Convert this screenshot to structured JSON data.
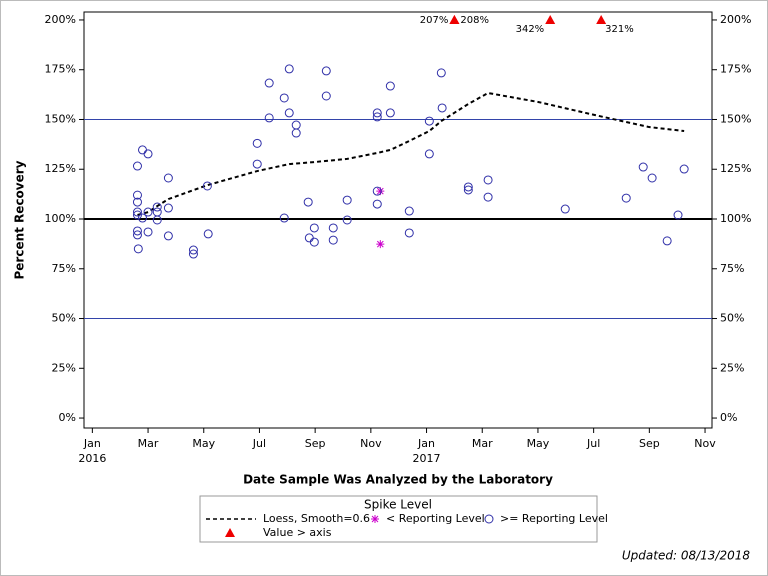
{
  "chart_data": {
    "type": "scatter",
    "x_label": "Date Sample Was Analyzed by the Laboratory",
    "y_label": "Percent Recovery",
    "xlim": [
      -0.3,
      22.25
    ],
    "xticks": [
      {
        "value": 0,
        "label": "Jan"
      },
      {
        "value": 2,
        "label": "Mar"
      },
      {
        "value": 4,
        "label": "May"
      },
      {
        "value": 6,
        "label": "Jul"
      },
      {
        "value": 8,
        "label": "Sep"
      },
      {
        "value": 10,
        "label": "Nov"
      },
      {
        "value": 12,
        "label": "Jan"
      },
      {
        "value": 14,
        "label": "Mar"
      },
      {
        "value": 16,
        "label": "May"
      },
      {
        "value": 18,
        "label": "Jul"
      },
      {
        "value": 20,
        "label": "Sep"
      },
      {
        "value": 22,
        "label": "Nov"
      }
    ],
    "x_year_labels": [
      {
        "value": 0,
        "label": "2016"
      },
      {
        "value": 12,
        "label": "2017"
      }
    ],
    "ylim": [
      -5,
      204
    ],
    "yticks": [
      {
        "value": 0,
        "label": "0%"
      },
      {
        "value": 25,
        "label": "25%"
      },
      {
        "value": 50,
        "label": "50%"
      },
      {
        "value": 75,
        "label": "75%"
      },
      {
        "value": 100,
        "label": "100%"
      },
      {
        "value": 125,
        "label": "125%"
      },
      {
        "value": 150,
        "label": "150%"
      },
      {
        "value": 175,
        "label": "175%"
      },
      {
        "value": 200,
        "label": "200%"
      }
    ],
    "reference_lines": [
      {
        "value": 50,
        "color": "#3344aa"
      },
      {
        "value": 100,
        "color": "#000000"
      },
      {
        "value": 150,
        "color": "#3344aa"
      }
    ],
    "legend_title": "Spike Level",
    "footnote": "Updated: 08/13/2018",
    "series": [
      {
        "name": "Loess, Smooth=0.6",
        "kind": "line",
        "color": "#000000",
        "x": [
          1.62,
          2.01,
          2.33,
          2.73,
          4.13,
          5.92,
          7.07,
          7.97,
          9.15,
          10.23,
          10.7,
          11.38,
          12.1,
          12.53,
          13.5,
          14.21,
          16.01,
          18.02,
          19.99,
          21.25
        ],
        "values": [
          102,
          103.5,
          106.5,
          110,
          117,
          124.1,
          127.6,
          128.6,
          130.2,
          133.2,
          134.7,
          139.2,
          144.2,
          149.2,
          157.8,
          163.3,
          158.8,
          152.3,
          146.2,
          144.2
        ]
      },
      {
        "name": "< Reporting Level",
        "kind": "asterisk",
        "color": "#cc00cc",
        "x": [
          10.34,
          10.34
        ],
        "values": [
          114,
          87.4
        ]
      },
      {
        "name": ">= Reporting Level",
        "kind": "circle",
        "color": "#2f2fa8",
        "x": [
          1.62,
          1.62,
          1.62,
          1.62,
          1.62,
          1.62,
          1.62,
          1.65,
          1.8,
          2.0,
          2.0,
          2.0,
          1.8,
          2.33,
          2.33,
          2.33,
          2.73,
          2.73,
          2.73,
          3.63,
          3.63,
          4.13,
          4.16,
          5.92,
          5.92,
          6.35,
          6.35,
          6.89,
          7.07,
          7.07,
          7.32,
          7.32,
          6.89,
          7.75,
          7.79,
          7.97,
          7.97,
          8.4,
          8.4,
          8.65,
          8.65,
          9.15,
          9.15,
          10.23,
          10.23,
          10.23,
          10.23,
          10.7,
          10.7,
          11.38,
          11.38,
          12.1,
          12.1,
          12.53,
          12.56,
          13.5,
          13.5,
          14.21,
          14.21,
          16.98,
          19.17,
          19.78,
          20.1,
          20.64,
          21.03,
          21.25
        ],
        "values": [
          126.6,
          112,
          108.5,
          103.5,
          102,
          94,
          92,
          85,
          134.7,
          132.7,
          103.5,
          93.5,
          100.5,
          106,
          103.5,
          99.5,
          120.6,
          105.5,
          91.5,
          84.4,
          82.4,
          116.6,
          92.5,
          138,
          127.6,
          168.3,
          150.8,
          160.8,
          175.4,
          153.3,
          147.2,
          143.2,
          100.5,
          108.5,
          90.5,
          95.5,
          88.4,
          174.4,
          161.8,
          95.5,
          89.4,
          109.5,
          99.5,
          153.3,
          151.3,
          114,
          107.5,
          166.8,
          153.3,
          104,
          93,
          149.2,
          132.7,
          173.4,
          155.8,
          116.1,
          114.6,
          119.6,
          111,
          105,
          110.5,
          126.1,
          120.6,
          89,
          102,
          125.1
        ]
      },
      {
        "name": "Value > axis",
        "kind": "triangle",
        "color": "#ee0000",
        "x": [
          13.0,
          13.0,
          16.44,
          18.27
        ],
        "values": [
          207,
          208,
          342,
          321
        ],
        "value_labels": [
          "207%",
          "208%",
          "342%",
          "321%"
        ]
      }
    ]
  }
}
